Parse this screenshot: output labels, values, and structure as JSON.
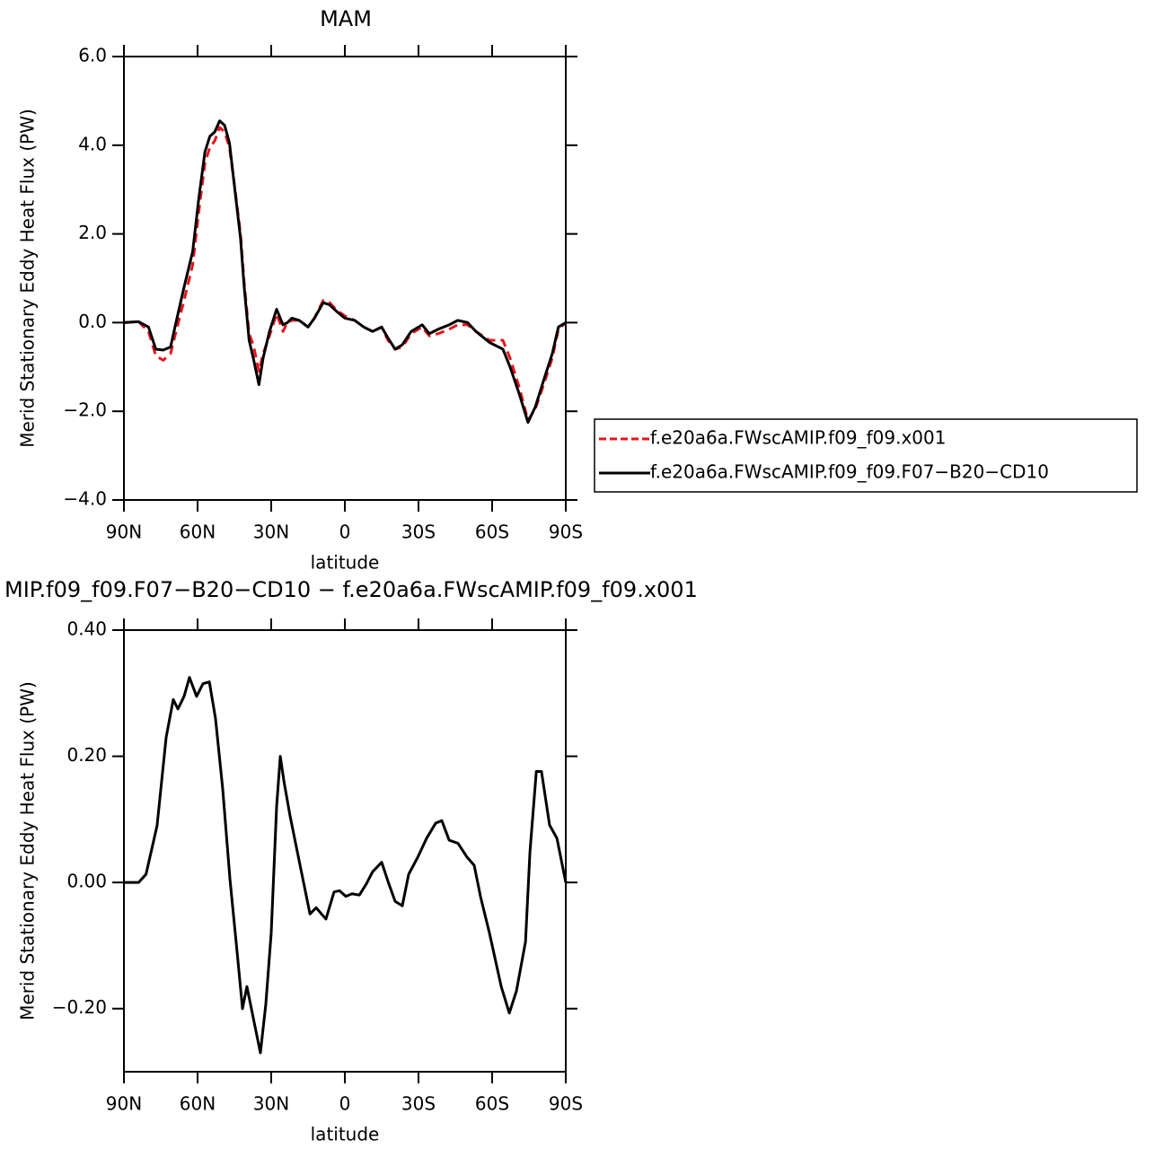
{
  "chart_data": [
    {
      "type": "line",
      "title": "MAM",
      "xlabel": "latitude",
      "ylabel": "Merid Stationary Eddy Heat Flux (PW)",
      "x": [
        90,
        84,
        80,
        77,
        74,
        71,
        69,
        65.5,
        62,
        59.5,
        57,
        55,
        53,
        51,
        49,
        47,
        44.5,
        42.5,
        41,
        39,
        37.3,
        35,
        33.3,
        30.7,
        27.8,
        25.2,
        23.4,
        21.6,
        18.6,
        15,
        12.4,
        8.8,
        6.2,
        3.3,
        0,
        -4,
        -7.7,
        -11.3,
        -15,
        -17.6,
        -20.5,
        -23.4,
        -27,
        -31.5,
        -34.4,
        -38,
        -42.5,
        -46,
        -50,
        -53.4,
        -59,
        -64.4,
        -67.3,
        -71,
        -74.6,
        -77.6,
        -81,
        -84.5,
        -87,
        -90
      ],
      "series": [
        {
          "name": "f.e20a6a.FWscAMIP.f09_f09.x001",
          "color": "#e8141b",
          "dash": true,
          "values": [
            0,
            0.02,
            -0.2,
            -0.75,
            -0.85,
            -0.7,
            -0.25,
            0.5,
            1.3,
            2.5,
            3.6,
            3.95,
            4.1,
            4.4,
            4.3,
            3.95,
            2.9,
            2.0,
            0.9,
            -0.25,
            -0.5,
            -1.1,
            -0.7,
            -0.3,
            0.2,
            -0.2,
            0,
            0.05,
            0.05,
            -0.1,
            0.1,
            0.5,
            0.45,
            0.28,
            0.15,
            0.05,
            -0.1,
            -0.2,
            -0.1,
            -0.4,
            -0.6,
            -0.55,
            -0.25,
            -0.1,
            -0.3,
            -0.25,
            -0.15,
            -0.05,
            -0.05,
            -0.2,
            -0.4,
            -0.4,
            -0.8,
            -1.45,
            -2.2,
            -1.95,
            -1.4,
            -0.8,
            -0.15,
            0
          ]
        },
        {
          "name": "f.e20a6a.FWscAMIP.f09_f09.F07−B20−CD10",
          "color": "#000000",
          "dash": false,
          "values": [
            0,
            0.02,
            -0.1,
            -0.6,
            -0.62,
            -0.55,
            -0.05,
            0.8,
            1.6,
            2.8,
            3.85,
            4.2,
            4.3,
            4.55,
            4.45,
            4.05,
            2.85,
            1.9,
            0.8,
            -0.4,
            -0.8,
            -1.4,
            -0.8,
            -0.2,
            0.3,
            -0.05,
            0,
            0.1,
            0.05,
            -0.1,
            0.1,
            0.45,
            0.4,
            0.25,
            0.1,
            0.05,
            -0.1,
            -0.2,
            -0.1,
            -0.35,
            -0.6,
            -0.5,
            -0.2,
            -0.05,
            -0.25,
            -0.15,
            -0.05,
            0.05,
            0,
            -0.2,
            -0.45,
            -0.6,
            -1.0,
            -1.6,
            -2.25,
            -1.9,
            -1.3,
            -0.7,
            -0.1,
            0
          ]
        }
      ],
      "xlim": [
        90,
        -90
      ],
      "xticks": [
        {
          "value": 90,
          "label": "90N"
        },
        {
          "value": 60,
          "label": "60N"
        },
        {
          "value": 30,
          "label": "30N"
        },
        0,
        {
          "value": -30,
          "label": "30S"
        },
        {
          "value": -60,
          "label": "60S"
        },
        {
          "value": -90,
          "label": "90S"
        }
      ],
      "ylim": [
        -4,
        6
      ],
      "yticks": [
        {
          "value": -4,
          "label": "−4.0"
        },
        {
          "value": -2,
          "label": "−2.0"
        },
        {
          "value": 0,
          "label": "0.0"
        },
        {
          "value": 2,
          "label": "2.0"
        },
        {
          "value": 4,
          "label": "4.0"
        },
        {
          "value": 6,
          "label": "6.0"
        }
      ]
    },
    {
      "type": "line",
      "title": "MIP.f09_f09.F07−B20−CD10 − f.e20a6a.FWscAMIP.f09_f09.x001",
      "xlabel": "latitude",
      "ylabel": "Merid Stationary Eddy Heat Flux (PW)",
      "x": [
        90,
        84,
        81,
        76.5,
        72.8,
        69.9,
        68,
        65.5,
        63.3,
        60.4,
        57.8,
        55.2,
        52.7,
        49.8,
        46.8,
        43.9,
        41.7,
        39.9,
        37.3,
        34.4,
        32.2,
        30,
        27.8,
        26.3,
        24.8,
        22.3,
        18.6,
        14.2,
        11.7,
        9.5,
        7.7,
        4.4,
        2.2,
        -0.4,
        -2.9,
        -5.9,
        -8.8,
        -11.3,
        -15,
        -17.9,
        -20.5,
        -23.4,
        -26,
        -29.7,
        -33.3,
        -37,
        -39.5,
        -42.5,
        -46.1,
        -49.8,
        -52.7,
        -55.3,
        -58.9,
        -63.7,
        -67,
        -69.9,
        -73.6,
        -75.4,
        -78,
        -80.1,
        -83.4,
        -86.4,
        -90
      ],
      "values": [
        0,
        0,
        0.013,
        0.09,
        0.23,
        0.29,
        0.275,
        0.295,
        0.325,
        0.295,
        0.315,
        0.318,
        0.26,
        0.15,
        0.005,
        -0.11,
        -0.2,
        -0.165,
        -0.215,
        -0.27,
        -0.193,
        -0.08,
        0.12,
        0.2,
        0.16,
        0.105,
        0.034,
        -0.05,
        -0.04,
        -0.05,
        -0.058,
        -0.015,
        -0.013,
        -0.022,
        -0.018,
        -0.02,
        -0.002,
        0.017,
        0.032,
        -0.002,
        -0.03,
        -0.037,
        0.013,
        0.04,
        0.07,
        0.094,
        0.098,
        0.067,
        0.062,
        0.04,
        0.027,
        -0.023,
        -0.08,
        -0.165,
        -0.207,
        -0.172,
        -0.094,
        0.048,
        0.176,
        0.176,
        0.091,
        0.07,
        0
      ],
      "color": "#000000",
      "xlim": [
        90,
        -90
      ],
      "xticks": [
        {
          "value": 90,
          "label": "90N"
        },
        {
          "value": 60,
          "label": "60N"
        },
        {
          "value": 30,
          "label": "30N"
        },
        0,
        {
          "value": -30,
          "label": "30S"
        },
        {
          "value": -60,
          "label": "60S"
        },
        {
          "value": -90,
          "label": "90S"
        }
      ],
      "ylim": [
        -0.3,
        0.4
      ],
      "yticks": [
        {
          "value": -0.2,
          "label": "−0.20"
        },
        {
          "value": 0,
          "label": "0.00"
        },
        {
          "value": 0.2,
          "label": "0.20"
        },
        {
          "value": 0.4,
          "label": "0.40"
        }
      ]
    }
  ]
}
